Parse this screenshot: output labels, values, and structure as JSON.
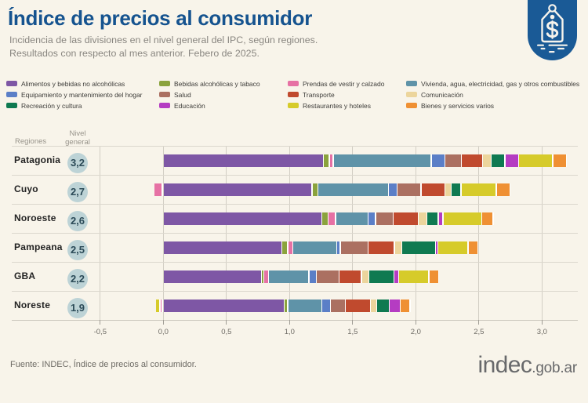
{
  "title": "Índice de precios al consumidor",
  "subtitle_line1": "Incidencia de las divisiones en el nivel general del IPC, según regiones.",
  "subtitle_line2": "Resultados con respecto al mes anterior. Febero de 2025.",
  "source_note": "Fuente: INDEC, Índice de precios al consumidor.",
  "brand": {
    "logo_text_main": "indec",
    "logo_text_suffix": ".gob.ar",
    "badge_color": "#1a5a96",
    "badge_symbol": "$"
  },
  "table": {
    "regions_header": "Regiones",
    "level_header_line1": "Nivel",
    "level_header_line2": "general"
  },
  "chart_data": {
    "type": "bar",
    "subtype": "horizontal-stacked",
    "value_unit": "incidencia en puntos porcentuales",
    "axis": {
      "min": -0.5,
      "max": 3.0,
      "step": 0.5,
      "tick_labels": [
        "-0,5",
        "0,0",
        "0,5",
        "1,0",
        "1,5",
        "2,0",
        "2,5",
        "3,0"
      ]
    },
    "divisions": [
      {
        "id": "alimentos",
        "label": "Alimentos y bebidas no alcohólicas",
        "color": "#7e57a5"
      },
      {
        "id": "bebidas",
        "label": "Bebidas alcohólicas y tabaco",
        "color": "#8ba33d"
      },
      {
        "id": "prendas",
        "label": "Prendas de vestir y calzado",
        "color": "#e671a4"
      },
      {
        "id": "vivienda",
        "label": "Vivienda, agua, electricidad, gas y otros combustibles",
        "color": "#5f93a8"
      },
      {
        "id": "equipamiento",
        "label": "Equipamiento y mantenimiento del hogar",
        "color": "#5b7fc7"
      },
      {
        "id": "salud",
        "label": "Salud",
        "color": "#ab7061"
      },
      {
        "id": "transporte",
        "label": "Transporte",
        "color": "#c04a2e"
      },
      {
        "id": "comunicacion",
        "label": "Comunicación",
        "color": "#ecd59c"
      },
      {
        "id": "recreacion",
        "label": "Recreación y cultura",
        "color": "#0f7a51"
      },
      {
        "id": "educacion",
        "label": "Educación",
        "color": "#b53cc2"
      },
      {
        "id": "restaurantes",
        "label": "Restaurantes y hoteles",
        "color": "#d6cb2a"
      },
      {
        "id": "bienes",
        "label": "Bienes y servicios varios",
        "color": "#ef9033"
      }
    ],
    "legend_column_order": [
      [
        0,
        4,
        8
      ],
      [
        1,
        5,
        9
      ],
      [
        2,
        6,
        10
      ],
      [
        3,
        7,
        11
      ]
    ],
    "regions": [
      {
        "name": "Patagonia",
        "nivel_general": "3,2",
        "values": [
          1.26,
          0.04,
          0.02,
          0.77,
          0.1,
          0.12,
          0.16,
          0.06,
          0.1,
          0.1,
          0.26,
          0.1
        ]
      },
      {
        "name": "Cuyo",
        "nivel_general": "2,7",
        "values": [
          1.17,
          0.04,
          -0.06,
          0.55,
          0.06,
          0.18,
          0.18,
          0.04,
          0.07,
          0,
          0.27,
          0.1
        ]
      },
      {
        "name": "Noroeste",
        "nivel_general": "2,6",
        "values": [
          1.25,
          0.04,
          0.05,
          0.25,
          0.05,
          0.13,
          0.19,
          0.06,
          0.08,
          0.03,
          0.3,
          0.08
        ]
      },
      {
        "name": "Pampeana",
        "nivel_general": "2,5",
        "values": [
          0.93,
          0.04,
          0.03,
          0.34,
          0.02,
          0.21,
          0.2,
          0.05,
          0.26,
          0.01,
          0.23,
          0.07
        ]
      },
      {
        "name": "GBA",
        "nivel_general": "2,2",
        "values": [
          0.77,
          0.01,
          0.03,
          0.31,
          0.05,
          0.17,
          0.17,
          0.05,
          0.19,
          0.03,
          0.23,
          0.07
        ]
      },
      {
        "name": "Noreste",
        "nivel_general": "1,9",
        "values": [
          0.95,
          0.02,
          -0.01,
          0.26,
          0.06,
          0.11,
          0.19,
          0.04,
          0.09,
          0.08,
          -0.03,
          0.07
        ]
      }
    ]
  }
}
